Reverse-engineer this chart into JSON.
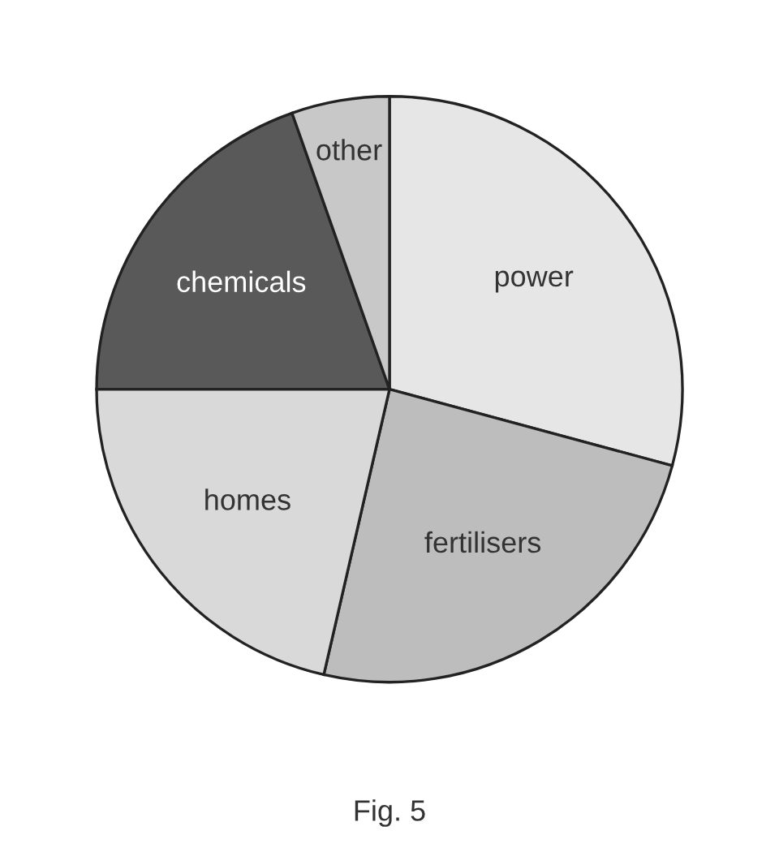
{
  "chart_data": {
    "type": "pie",
    "categories": [
      "power",
      "fertilisers",
      "homes",
      "chemicals",
      "other"
    ],
    "values": [
      29.2,
      24.4,
      21.4,
      19.6,
      5.4
    ],
    "colors": [
      "#e6e6e6",
      "#bdbdbd",
      "#d9d9d9",
      "#595959",
      "#c8c8c8"
    ],
    "annotations": [
      "Fig. 5"
    ]
  }
}
